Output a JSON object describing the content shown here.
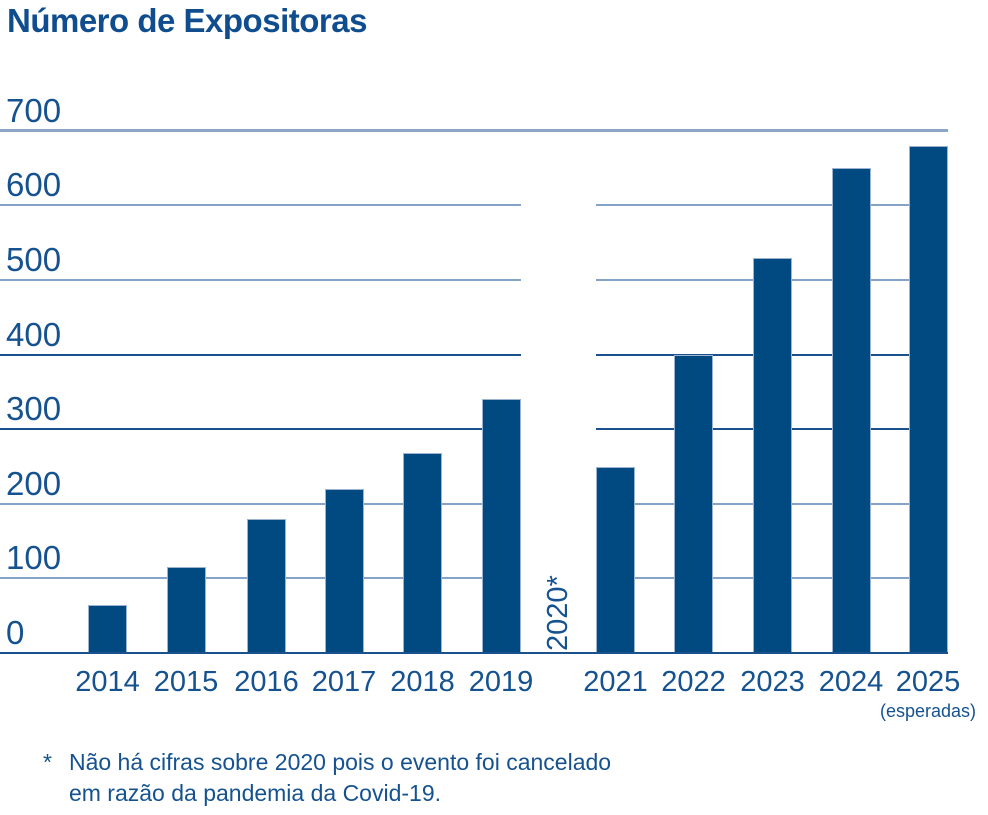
{
  "title": "Número de Expositoras",
  "colors": {
    "bar": "#004a81",
    "title_text": "#0f4d8f",
    "axis_text": "#15528f",
    "grid_light": "#84a3c6",
    "grid_dark": "#1b528e",
    "grid_top": "#8ca7c6"
  },
  "chart_data": {
    "type": "bar",
    "title": "Número de Expositoras",
    "categories": [
      "2014",
      "2015",
      "2016",
      "2017",
      "2018",
      "2019",
      "2020*",
      "2021",
      "2022",
      "2023",
      "2024",
      "2025"
    ],
    "values": [
      65,
      115,
      180,
      220,
      268,
      340,
      null,
      250,
      400,
      530,
      650,
      680
    ],
    "missing_category_label": "2020*",
    "yticks": [
      0,
      100,
      200,
      300,
      400,
      500,
      600,
      700
    ],
    "ylim": [
      0,
      700
    ],
    "xlabel": "",
    "ylabel": "",
    "grid": "horizontal",
    "legend": "none",
    "x_annotation": {
      "category": "2025",
      "label": "(esperadas)"
    },
    "footnote": {
      "marker": "*",
      "lines": [
        "Não há cifras sobre 2020 pois o evento foi cancelado",
        "em razão da pandemia da Covid-19."
      ]
    }
  }
}
